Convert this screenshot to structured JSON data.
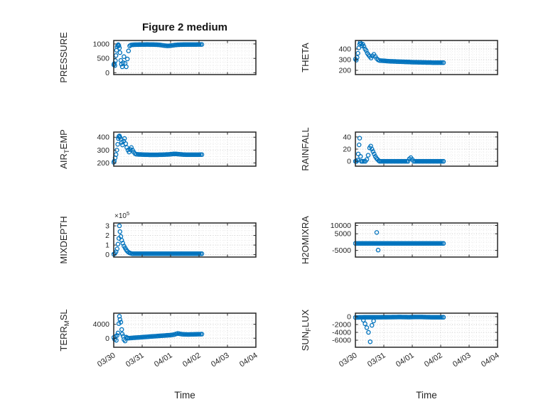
{
  "figure": {
    "title": "Figure 2 medium",
    "xlabel": "Time",
    "marker_color": "#0072BD",
    "axis_color": "#262626",
    "grid_major_color": "#c6c6c6",
    "grid_minor_color": "#e3e3e3",
    "x_tick_values": [
      0,
      1,
      2,
      3,
      4,
      5
    ],
    "x_tick_labels": [
      "03/30",
      "03/31",
      "04/01",
      "04/02",
      "04/03",
      "04/04"
    ]
  },
  "chart_data": [
    {
      "name": "pressure",
      "type": "scatter",
      "row": 0,
      "col": 0,
      "ylabel_parts": [
        {
          "text": "PRESSURE"
        }
      ],
      "xlim": [
        0,
        5
      ],
      "ylim": [
        -60,
        1120
      ],
      "y_ticks": [
        {
          "value": 0,
          "label": "0"
        },
        {
          "value": 500,
          "label": "500"
        },
        {
          "value": 1000,
          "label": "1000"
        }
      ],
      "scatter_points": [
        [
          0,
          280
        ],
        [
          0.02,
          320
        ],
        [
          0.04,
          250
        ],
        [
          0.06,
          420
        ],
        [
          0.08,
          600
        ],
        [
          0.1,
          780
        ],
        [
          0.12,
          900
        ],
        [
          0.14,
          950
        ],
        [
          0.16,
          975
        ],
        [
          0.18,
          940
        ],
        [
          0.2,
          860
        ],
        [
          0.22,
          700
        ],
        [
          0.25,
          430
        ],
        [
          0.27,
          300
        ],
        [
          0.3,
          210
        ],
        [
          0.33,
          350
        ],
        [
          0.36,
          560
        ],
        [
          0.4,
          330
        ],
        [
          0.44,
          210
        ],
        [
          0.48,
          480
        ],
        [
          0.52,
          760
        ],
        [
          0.56,
          930
        ],
        [
          0.6,
          960
        ]
      ],
      "dense": {
        "t_start": 0.65,
        "t_step": 0.05,
        "values": [
          968,
          972,
          975,
          976,
          977,
          978,
          978,
          979,
          980,
          980,
          981,
          981,
          980,
          980,
          979,
          978,
          977,
          975,
          972,
          968,
          962,
          955,
          948,
          941,
          936,
          934,
          936,
          941,
          948,
          955,
          962,
          967,
          971,
          974,
          976,
          977,
          978,
          978,
          979,
          979,
          979,
          980,
          980,
          980,
          980,
          980,
          981,
          981,
          981,
          982
        ]
      }
    },
    {
      "name": "theta",
      "type": "scatter",
      "row": 0,
      "col": 1,
      "ylabel_parts": [
        {
          "text": "THETA"
        }
      ],
      "xlim": [
        0,
        5
      ],
      "ylim": [
        160,
        480
      ],
      "y_ticks": [
        {
          "value": 200,
          "label": "200"
        },
        {
          "value": 300,
          "label": "300"
        },
        {
          "value": 400,
          "label": "400"
        }
      ],
      "scatter_points": [
        [
          0,
          305
        ],
        [
          0.03,
          295
        ],
        [
          0.06,
          320
        ],
        [
          0.09,
          360
        ],
        [
          0.12,
          410
        ],
        [
          0.15,
          445
        ],
        [
          0.17,
          460
        ],
        [
          0.2,
          450
        ],
        [
          0.23,
          430
        ],
        [
          0.26,
          445
        ],
        [
          0.3,
          425
        ],
        [
          0.34,
          400
        ],
        [
          0.38,
          385
        ],
        [
          0.42,
          360
        ],
        [
          0.46,
          345
        ],
        [
          0.5,
          330
        ],
        [
          0.55,
          315
        ],
        [
          0.6,
          335
        ],
        [
          0.65,
          350
        ],
        [
          0.7,
          330
        ],
        [
          0.75,
          310
        ],
        [
          0.8,
          298
        ]
      ],
      "dense": {
        "t_start": 0.85,
        "t_step": 0.05,
        "values": [
          292,
          291,
          290,
          289,
          288,
          287,
          286,
          285,
          284,
          284,
          283,
          283,
          282,
          282,
          281,
          281,
          280,
          280,
          279,
          279,
          278,
          278,
          277,
          277,
          276,
          276,
          276,
          275,
          275,
          275,
          274,
          274,
          274,
          273,
          273,
          273,
          273,
          272,
          272,
          272,
          272,
          272,
          272,
          272,
          272,
          272
        ]
      }
    },
    {
      "name": "airtemp",
      "type": "scatter",
      "row": 1,
      "col": 0,
      "ylabel_parts": [
        {
          "text": "AIR"
        },
        {
          "text": "T",
          "sub": true
        },
        {
          "text": "EMP"
        }
      ],
      "xlim": [
        0,
        5
      ],
      "ylim": [
        175,
        440
      ],
      "y_ticks": [
        {
          "value": 200,
          "label": "200"
        },
        {
          "value": 300,
          "label": "300"
        },
        {
          "value": 400,
          "label": "400"
        }
      ],
      "scatter_points": [
        [
          0,
          205
        ],
        [
          0.02,
          215
        ],
        [
          0.05,
          240
        ],
        [
          0.08,
          265
        ],
        [
          0.11,
          300
        ],
        [
          0.14,
          345
        ],
        [
          0.16,
          390
        ],
        [
          0.18,
          405
        ],
        [
          0.2,
          410
        ],
        [
          0.22,
          400
        ],
        [
          0.25,
          385
        ],
        [
          0.28,
          360
        ],
        [
          0.31,
          340
        ],
        [
          0.35,
          370
        ],
        [
          0.38,
          390
        ],
        [
          0.42,
          350
        ],
        [
          0.46,
          320
        ],
        [
          0.5,
          300
        ],
        [
          0.54,
          285
        ],
        [
          0.58,
          305
        ],
        [
          0.62,
          320
        ],
        [
          0.66,
          300
        ],
        [
          0.7,
          285
        ],
        [
          0.75,
          272
        ]
      ],
      "dense": {
        "t_start": 0.8,
        "t_step": 0.05,
        "values": [
          268,
          267,
          266,
          266,
          265,
          265,
          264,
          264,
          264,
          263,
          263,
          263,
          263,
          263,
          263,
          263,
          264,
          264,
          264,
          265,
          265,
          266,
          266,
          267,
          268,
          269,
          270,
          270,
          270,
          269,
          268,
          267,
          266,
          265,
          265,
          264,
          264,
          264,
          264,
          264,
          264,
          264,
          264,
          264,
          264,
          265,
          265
        ]
      }
    },
    {
      "name": "rainfall",
      "type": "scatter",
      "row": 1,
      "col": 1,
      "ylabel_parts": [
        {
          "text": "RAINFALL"
        }
      ],
      "xlim": [
        0,
        5
      ],
      "ylim": [
        -8,
        48
      ],
      "y_ticks": [
        {
          "value": 0,
          "label": "0"
        },
        {
          "value": 20,
          "label": "20"
        },
        {
          "value": 40,
          "label": "40"
        }
      ],
      "scatter_points": [
        [
          0,
          0
        ],
        [
          0.04,
          0
        ],
        [
          0.08,
          2
        ],
        [
          0.1,
          12
        ],
        [
          0.13,
          27
        ],
        [
          0.15,
          38
        ],
        [
          0.18,
          8
        ],
        [
          0.21,
          0
        ],
        [
          0.25,
          0
        ],
        [
          0.3,
          0
        ],
        [
          0.35,
          0
        ],
        [
          0.4,
          3
        ],
        [
          0.45,
          10
        ],
        [
          0.5,
          22
        ],
        [
          0.54,
          25
        ],
        [
          0.58,
          20
        ],
        [
          0.62,
          16
        ],
        [
          0.66,
          12
        ],
        [
          0.7,
          8
        ],
        [
          0.74,
          5
        ],
        [
          0.78,
          3
        ],
        [
          0.82,
          1
        ]
      ],
      "dense": {
        "t_start": 0.85,
        "t_step": 0.05,
        "values": [
          0,
          0,
          0,
          0,
          0,
          0,
          0,
          0,
          0,
          0,
          0,
          0,
          0,
          0,
          0,
          0,
          0,
          0,
          0,
          0,
          0,
          4,
          6,
          3,
          0,
          0,
          0,
          0,
          0,
          0,
          0,
          0,
          0,
          0,
          0,
          0,
          0,
          0,
          0,
          0,
          0,
          0,
          0,
          0,
          0,
          0
        ]
      }
    },
    {
      "name": "mixdepth",
      "type": "scatter",
      "row": 2,
      "col": 0,
      "ylabel_parts": [
        {
          "text": "MIXDEPTH"
        }
      ],
      "multiplier": {
        "base": "×10",
        "exp": "5"
      },
      "xlim": [
        0,
        5
      ],
      "ylim": [
        -25000,
        330000
      ],
      "y_ticks": [
        {
          "value": 0,
          "label": "0"
        },
        {
          "value": 100000,
          "label": "1"
        },
        {
          "value": 200000,
          "label": "2"
        },
        {
          "value": 300000,
          "label": "3"
        }
      ],
      "scatter_points": [
        [
          0,
          5000
        ],
        [
          0.04,
          12000
        ],
        [
          0.08,
          30000
        ],
        [
          0.12,
          60000
        ],
        [
          0.15,
          110000
        ],
        [
          0.18,
          170000
        ],
        [
          0.2,
          300000
        ],
        [
          0.22,
          240000
        ],
        [
          0.25,
          190000
        ],
        [
          0.28,
          150000
        ],
        [
          0.32,
          120000
        ],
        [
          0.36,
          90000
        ],
        [
          0.4,
          70000
        ],
        [
          0.44,
          50000
        ],
        [
          0.48,
          35000
        ],
        [
          0.52,
          25000
        ],
        [
          0.56,
          18000
        ],
        [
          0.6,
          14000
        ]
      ],
      "dense": {
        "t_start": 0.65,
        "t_step": 0.05,
        "values": [
          10000,
          10000,
          10000,
          10000,
          10000,
          10000,
          10000,
          10000,
          10000,
          10000,
          10000,
          10000,
          10000,
          10000,
          10000,
          10000,
          10000,
          10000,
          10000,
          10000,
          10000,
          10000,
          10000,
          10000,
          10000,
          10000,
          10000,
          10000,
          10000,
          10000,
          10000,
          10000,
          10000,
          10000,
          10000,
          10000,
          10000,
          10000,
          10000,
          10000,
          10000,
          10000,
          10000,
          10000,
          10000,
          10000,
          10000,
          10000,
          10000,
          10000
        ]
      }
    },
    {
      "name": "h2omixra",
      "type": "scatter",
      "row": 2,
      "col": 1,
      "ylabel_parts": [
        {
          "text": "H2OMIXRA"
        }
      ],
      "xlim": [
        0,
        5
      ],
      "ylim": [
        -9000,
        11500
      ],
      "y_ticks": [
        {
          "value": -5000,
          "label": "-5000"
        },
        {
          "value": 5000,
          "label": "5000"
        },
        {
          "value": 10000,
          "label": "10000"
        }
      ],
      "scatter_points": [
        [
          0.75,
          5800
        ],
        [
          0.8,
          -4800
        ]
      ],
      "dense": {
        "t_start": 0,
        "t_step": 0.05,
        "values": [
          -800,
          -800,
          -800,
          -800,
          -800,
          -800,
          -800,
          -800,
          -800,
          -800,
          -800,
          -800,
          -800,
          -800,
          -800,
          -800,
          -800,
          -800,
          -800,
          -800,
          -800,
          -800,
          -800,
          -800,
          -800,
          -800,
          -800,
          -800,
          -800,
          -800,
          -800,
          -800,
          -800,
          -800,
          -800,
          -800,
          -800,
          -800,
          -800,
          -800,
          -800,
          -800,
          -800,
          -800,
          -800,
          -800,
          -800,
          -800,
          -800,
          -800,
          -800,
          -800,
          -800,
          -800,
          -800,
          -800,
          -800,
          -800,
          -800,
          -800,
          -800,
          -800,
          -800
        ]
      }
    },
    {
      "name": "terrmsl",
      "type": "scatter",
      "row": 3,
      "col": 0,
      "ylabel_parts": [
        {
          "text": "TERR"
        },
        {
          "text": "M",
          "sub": true
        },
        {
          "text": "SL"
        }
      ],
      "xlim": [
        0,
        5
      ],
      "ylim": [
        -2600,
        7200
      ],
      "y_ticks": [
        {
          "value": 0,
          "label": "0"
        },
        {
          "value": 4000,
          "label": "4000"
        }
      ],
      "scatter_points": [
        [
          0,
          200
        ],
        [
          0.03,
          -300
        ],
        [
          0.06,
          500
        ],
        [
          0.09,
          -600
        ],
        [
          0.12,
          800
        ],
        [
          0.15,
          1500
        ],
        [
          0.18,
          4200
        ],
        [
          0.2,
          6300
        ],
        [
          0.22,
          5400
        ],
        [
          0.25,
          4600
        ],
        [
          0.28,
          2500
        ],
        [
          0.3,
          1200
        ],
        [
          0.33,
          600
        ],
        [
          0.36,
          -400
        ],
        [
          0.4,
          -800
        ],
        [
          0.44,
          300
        ],
        [
          0.48,
          100
        ]
      ],
      "dense": {
        "t_start": 0.5,
        "t_step": 0.05,
        "values": [
          0,
          30,
          60,
          90,
          120,
          150,
          180,
          210,
          240,
          270,
          300,
          330,
          360,
          390,
          420,
          450,
          480,
          510,
          540,
          570,
          600,
          630,
          660,
          690,
          720,
          750,
          780,
          810,
          840,
          870,
          900,
          950,
          1020,
          1100,
          1250,
          1350,
          1300,
          1220,
          1150,
          1120,
          1100,
          1090,
          1080,
          1080,
          1090,
          1100,
          1110,
          1120,
          1130,
          1140,
          1150,
          1160,
          1170
        ]
      }
    },
    {
      "name": "sunflux",
      "type": "scatter",
      "row": 3,
      "col": 1,
      "ylabel_parts": [
        {
          "text": "SUN"
        },
        {
          "text": "F",
          "sub": true
        },
        {
          "text": "LUX"
        }
      ],
      "xlim": [
        0,
        5
      ],
      "ylim": [
        -7800,
        900
      ],
      "y_ticks": [
        {
          "value": -6000,
          "label": "-6000"
        },
        {
          "value": -4000,
          "label": "-4000"
        },
        {
          "value": -2000,
          "label": "-2000"
        },
        {
          "value": 0,
          "label": "0"
        }
      ],
      "scatter_points": [
        [
          0.28,
          -900
        ],
        [
          0.34,
          -1800
        ],
        [
          0.4,
          -2800
        ],
        [
          0.46,
          -4000
        ],
        [
          0.52,
          -6400
        ],
        [
          0.58,
          -2200
        ],
        [
          0.64,
          -1100
        ]
      ],
      "dense": {
        "t_start": 0,
        "t_step": 0.05,
        "values": [
          -200,
          -190,
          -180,
          -170,
          -160,
          -155,
          -150,
          -150,
          -150,
          -150,
          -150,
          -150,
          -150,
          -145,
          -145,
          -140,
          -140,
          -135,
          -135,
          -130,
          -130,
          -125,
          -125,
          -120,
          -115,
          -110,
          -105,
          -100,
          -95,
          -90,
          -85,
          -85,
          -85,
          -90,
          -95,
          -100,
          -105,
          -110,
          -110,
          -105,
          -95,
          -85,
          -75,
          -70,
          -65,
          -65,
          -70,
          -80,
          -90,
          -100,
          -110,
          -120,
          -130,
          -140,
          -145,
          -150,
          -150,
          -150,
          -150,
          -150,
          -150,
          -150,
          -150
        ]
      }
    }
  ]
}
